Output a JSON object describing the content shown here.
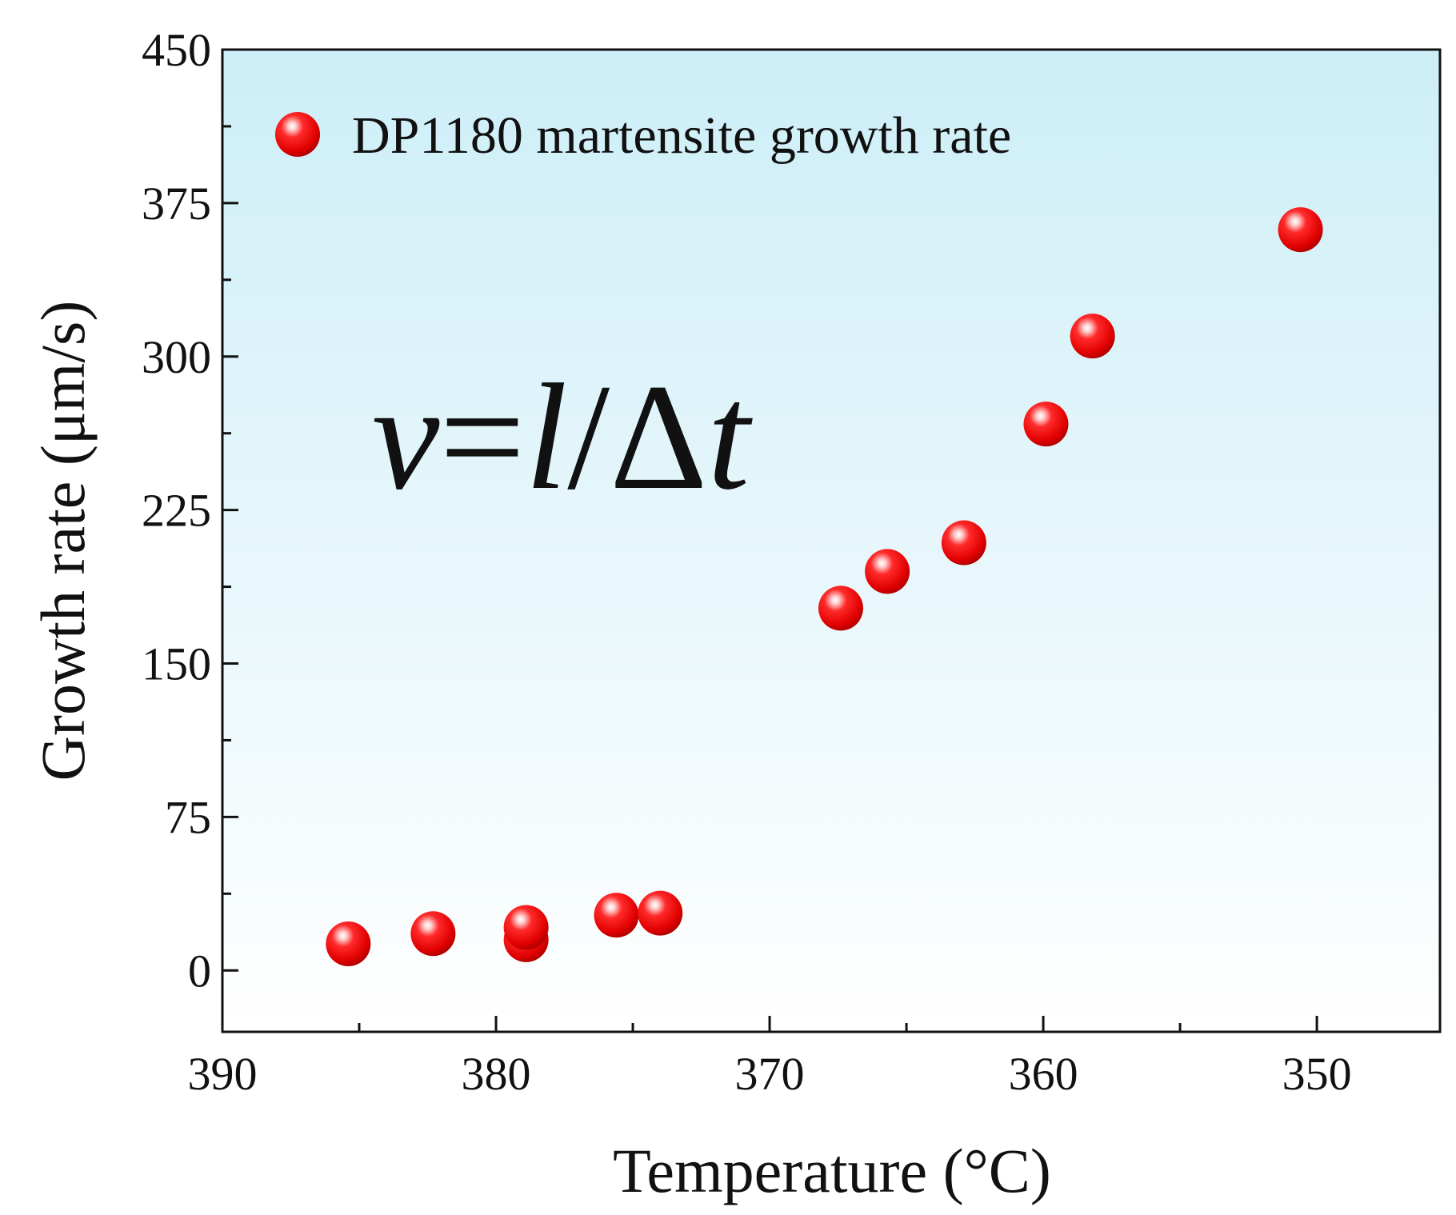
{
  "chart_data": {
    "type": "scatter",
    "title": "",
    "xlabel": "Temperature (°C)",
    "ylabel": "Growth rate (μm/s)",
    "xlim": [
      390,
      345.5
    ],
    "ylim": [
      -30,
      450
    ],
    "x_reversed": true,
    "x_ticks": [
      390,
      380,
      370,
      360,
      350
    ],
    "y_ticks": [
      0,
      75,
      150,
      225,
      300,
      375,
      450
    ],
    "grid": false,
    "legend": {
      "position": "top-left",
      "entries": [
        "DP1180 martensite growth rate"
      ]
    },
    "annotation": {
      "v": "v",
      "eq": "=",
      "l": "l",
      "slash": "/",
      "delta": "Δ",
      "t": "t"
    },
    "marker_color": "#ee1111",
    "series": [
      {
        "name": "DP1180 martensite growth rate",
        "x": [
          385.4,
          382.3,
          378.9,
          378.9,
          375.6,
          374.0,
          367.4,
          365.7,
          362.9,
          359.9,
          358.2,
          350.6
        ],
        "y": [
          13,
          18,
          15,
          21,
          27,
          28,
          177,
          195,
          209,
          267,
          310,
          362
        ]
      }
    ]
  }
}
